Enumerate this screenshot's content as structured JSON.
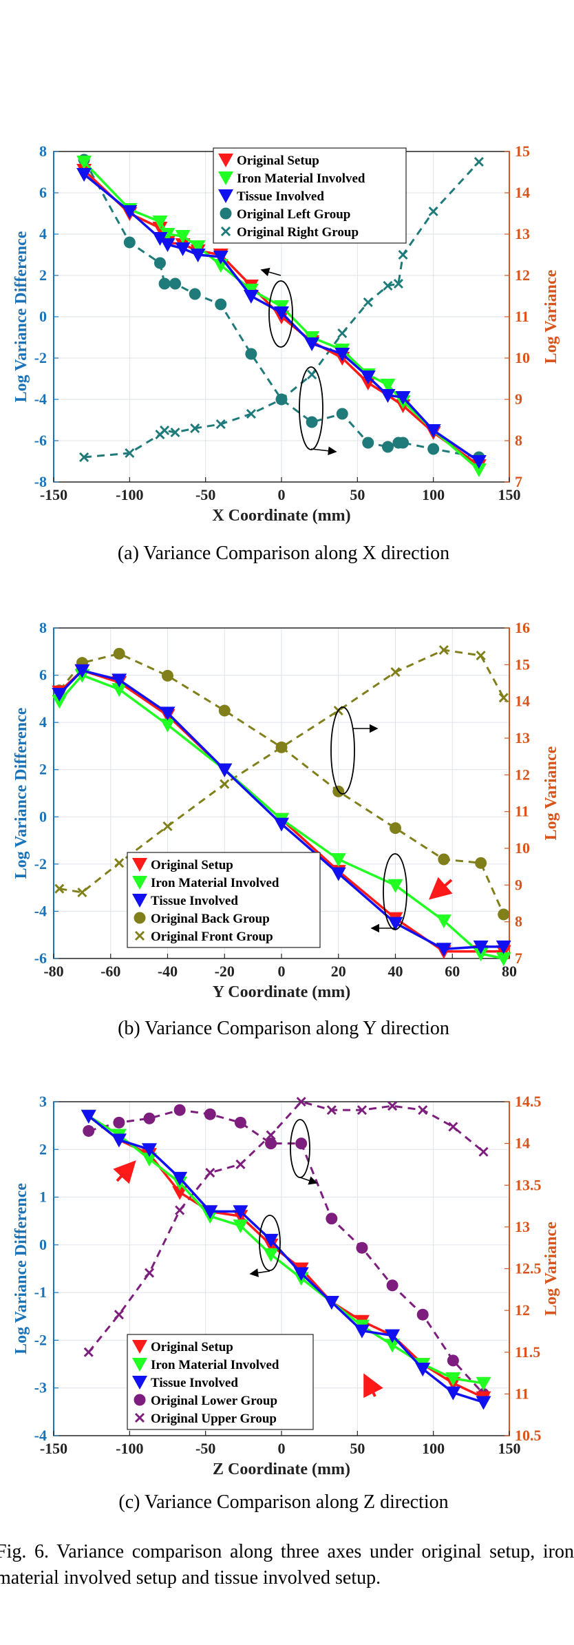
{
  "figure_caption": "Fig. 6.  Variance comparison along three axes under original setup, iron material involved setup and tissue involved setup.",
  "colors": {
    "left_axis": "#1a73b8",
    "right_axis": "#d9541a",
    "red": "#ff1a1a",
    "green": "#22ff22",
    "blue": "#1010f0",
    "teal": "#1f7a7a",
    "olive": "#807f1a",
    "purple": "#7d1d7d"
  },
  "chart_data": [
    {
      "type": "line",
      "caption": "(a)  Variance Comparison along X direction",
      "xlabel": "X Coordinate (mm)",
      "ylabel": "Log Variance Difference",
      "y2label": "Log Variance",
      "xlim": [
        -150,
        150
      ],
      "ylim": [
        -8,
        8
      ],
      "y2lim": [
        7,
        15
      ],
      "xticks": [
        "-150",
        "-100",
        "-50",
        "0",
        "50",
        "100",
        "150"
      ],
      "yticks": [
        "-8",
        "-6",
        "-4",
        "-2",
        "0",
        "2",
        "4",
        "6",
        "8"
      ],
      "y2ticks": [
        "7",
        "8",
        "9",
        "10",
        "11",
        "12",
        "13",
        "14",
        "15"
      ],
      "grid": true,
      "legend_position": "top-center",
      "series": [
        {
          "name": "Original Setup",
          "axis": "left",
          "color": "red",
          "marker": "triangle-down",
          "x": [
            -130,
            -100,
            -80,
            -75,
            -65,
            -55,
            -40,
            -20,
            0,
            20,
            40,
            57,
            70,
            80,
            100,
            130
          ],
          "y": [
            7.1,
            5.0,
            4.3,
            3.6,
            3.5,
            3.2,
            3.0,
            1.5,
            0.0,
            -1.2,
            -2.0,
            -3.2,
            -3.8,
            -4.3,
            -5.6,
            -7.2
          ]
        },
        {
          "name": "Iron Material Involved",
          "axis": "left",
          "color": "green",
          "marker": "triangle-down",
          "x": [
            -130,
            -100,
            -80,
            -75,
            -65,
            -55,
            -40,
            -20,
            0,
            20,
            40,
            57,
            70,
            80,
            100,
            130
          ],
          "y": [
            7.5,
            5.2,
            4.6,
            4.0,
            3.9,
            3.4,
            2.5,
            1.3,
            0.5,
            -1.0,
            -1.6,
            -2.8,
            -3.3,
            -4.1,
            -5.5,
            -7.4
          ]
        },
        {
          "name": "Tissue Involved",
          "axis": "left",
          "color": "blue",
          "marker": "triangle-down",
          "x": [
            -130,
            -100,
            -80,
            -75,
            -65,
            -55,
            -40,
            -20,
            0,
            20,
            40,
            57,
            70,
            80,
            100,
            130
          ],
          "y": [
            6.9,
            5.1,
            3.8,
            3.5,
            3.3,
            3.0,
            2.9,
            1.0,
            0.2,
            -1.3,
            -1.8,
            -2.9,
            -3.8,
            -3.9,
            -5.5,
            -7.0
          ]
        },
        {
          "name": "Original Left Group",
          "axis": "right",
          "color": "teal",
          "marker": "circle",
          "dashed": true,
          "x": [
            -130,
            -100,
            -80,
            -77,
            -70,
            -57,
            -40,
            -20,
            0,
            20,
            40,
            57,
            70,
            77,
            80,
            100,
            130
          ],
          "y": [
            14.8,
            12.8,
            12.3,
            11.8,
            11.8,
            11.55,
            11.3,
            10.1,
            9.0,
            8.45,
            8.65,
            7.95,
            7.85,
            7.95,
            7.95,
            7.8,
            7.6
          ]
        },
        {
          "name": "Original Right Group",
          "axis": "right",
          "color": "teal",
          "marker": "x",
          "dashed": true,
          "x": [
            -130,
            -100,
            -80,
            -77,
            -70,
            -57,
            -40,
            -20,
            0,
            20,
            40,
            57,
            70,
            77,
            80,
            100,
            130
          ],
          "y": [
            7.6,
            7.7,
            8.15,
            8.25,
            8.2,
            8.3,
            8.4,
            8.65,
            9.0,
            9.6,
            10.6,
            11.35,
            11.75,
            11.8,
            12.5,
            13.55,
            14.75
          ]
        }
      ]
    },
    {
      "type": "line",
      "caption": "(b)  Variance Comparison along Y direction",
      "xlabel": "Y Coordinate (mm)",
      "ylabel": "Log Variance Difference",
      "y2label": "Log Variance",
      "xlim": [
        -80,
        80
      ],
      "ylim": [
        -6,
        8
      ],
      "y2lim": [
        7,
        16
      ],
      "xticks": [
        "-80",
        "-60",
        "-40",
        "-20",
        "0",
        "20",
        "40",
        "60",
        "80"
      ],
      "yticks": [
        "-6",
        "-4",
        "-2",
        "0",
        "2",
        "4",
        "6",
        "8"
      ],
      "y2ticks": [
        "7",
        "8",
        "9",
        "10",
        "11",
        "12",
        "13",
        "14",
        "15",
        "16"
      ],
      "grid": true,
      "legend_position": "bottom-left",
      "series": [
        {
          "name": "Original Setup",
          "axis": "left",
          "color": "red",
          "marker": "triangle-down",
          "x": [
            -78,
            -70,
            -57,
            -40,
            -20,
            0,
            20,
            40,
            57,
            70,
            78
          ],
          "y": [
            5.3,
            6.2,
            5.7,
            4.3,
            2.0,
            -0.1,
            -2.3,
            -4.3,
            -5.7,
            -5.7,
            -5.7
          ]
        },
        {
          "name": "Iron Material Involved",
          "axis": "left",
          "color": "green",
          "marker": "triangle-down",
          "x": [
            -78,
            -70,
            -57,
            -40,
            -20,
            0,
            20,
            40,
            57,
            70,
            78
          ],
          "y": [
            4.9,
            6.0,
            5.4,
            3.9,
            2.0,
            -0.1,
            -1.8,
            -2.9,
            -4.4,
            -5.8,
            -6.0
          ]
        },
        {
          "name": "Tissue Involved",
          "axis": "left",
          "color": "blue",
          "marker": "triangle-down",
          "x": [
            -78,
            -70,
            -57,
            -40,
            -20,
            0,
            20,
            40,
            57,
            70,
            78
          ],
          "y": [
            5.2,
            6.2,
            5.8,
            4.4,
            2.0,
            -0.3,
            -2.4,
            -4.5,
            -5.6,
            -5.5,
            -5.5
          ]
        },
        {
          "name": "Original Back Group",
          "axis": "right",
          "color": "olive",
          "marker": "circle",
          "dashed": true,
          "x": [
            -78,
            -70,
            -57,
            -40,
            -20,
            0,
            20,
            40,
            57,
            70,
            78
          ],
          "y": [
            14.3,
            15.05,
            15.3,
            14.7,
            13.75,
            12.75,
            11.55,
            10.55,
            9.7,
            9.6,
            8.2
          ]
        },
        {
          "name": "Original Front Group",
          "axis": "right",
          "color": "olive",
          "marker": "x",
          "dashed": true,
          "x": [
            -78,
            -70,
            -57,
            -40,
            -20,
            0,
            20,
            40,
            57,
            70,
            78
          ],
          "y": [
            8.9,
            8.8,
            9.6,
            10.6,
            11.75,
            12.75,
            13.75,
            14.8,
            15.4,
            15.25,
            14.1
          ]
        }
      ]
    },
    {
      "type": "line",
      "caption": "(c)  Variance Comparison along Z direction",
      "xlabel": "Z Coordinate (mm)",
      "ylabel": "Log Variance Difference",
      "y2label": "Log Variance",
      "xlim": [
        -150,
        150
      ],
      "ylim": [
        -4,
        3
      ],
      "y2lim": [
        10.5,
        14.5
      ],
      "xticks": [
        "-150",
        "-100",
        "-50",
        "0",
        "50",
        "100",
        "150"
      ],
      "yticks": [
        "-4",
        "-3",
        "-2",
        "-1",
        "0",
        "1",
        "2",
        "3"
      ],
      "y2ticks": [
        "10.5",
        "11",
        "11.5",
        "12",
        "12.5",
        "13",
        "13.5",
        "14",
        "14.5"
      ],
      "grid": true,
      "legend_position": "bottom-left",
      "series": [
        {
          "name": "Original Setup",
          "axis": "left",
          "color": "red",
          "marker": "triangle-down",
          "x": [
            -127,
            -107,
            -87,
            -67,
            -47,
            -27,
            -7,
            13,
            33,
            53,
            73,
            93,
            113,
            133
          ],
          "y": [
            2.7,
            2.2,
            1.9,
            1.1,
            0.7,
            0.6,
            0.0,
            -0.5,
            -1.2,
            -1.6,
            -1.9,
            -2.5,
            -2.9,
            -3.2
          ]
        },
        {
          "name": "Iron Material Involved",
          "axis": "left",
          "color": "green",
          "marker": "triangle-down",
          "x": [
            -127,
            -107,
            -87,
            -67,
            -47,
            -27,
            -7,
            13,
            33,
            53,
            73,
            93,
            113,
            133
          ],
          "y": [
            2.7,
            2.3,
            1.8,
            1.3,
            0.6,
            0.4,
            -0.2,
            -0.7,
            -1.2,
            -1.7,
            -2.1,
            -2.5,
            -2.8,
            -2.9
          ]
        },
        {
          "name": "Tissue Involved",
          "axis": "left",
          "color": "blue",
          "marker": "triangle-down",
          "x": [
            -127,
            -107,
            -87,
            -67,
            -47,
            -27,
            -7,
            13,
            33,
            53,
            73,
            93,
            113,
            133
          ],
          "y": [
            2.7,
            2.2,
            2.0,
            1.4,
            0.7,
            0.7,
            0.1,
            -0.6,
            -1.2,
            -1.8,
            -1.9,
            -2.6,
            -3.1,
            -3.3
          ]
        },
        {
          "name": "Original Lower Group",
          "axis": "right",
          "color": "purple",
          "marker": "circle",
          "dashed": true,
          "x": [
            -127,
            -107,
            -87,
            -67,
            -47,
            -27,
            -7,
            13,
            33,
            53,
            73,
            93,
            113,
            133
          ],
          "y": [
            14.15,
            14.25,
            14.3,
            14.4,
            14.35,
            14.25,
            14.0,
            14.0,
            13.1,
            12.75,
            12.3,
            11.95,
            11.4,
            11.0
          ]
        },
        {
          "name": "Original Upper Group",
          "axis": "right",
          "color": "purple",
          "marker": "x",
          "dashed": true,
          "x": [
            -127,
            -107,
            -87,
            -67,
            -47,
            -27,
            -7,
            13,
            33,
            53,
            73,
            93,
            113,
            133
          ],
          "y": [
            11.5,
            11.95,
            12.45,
            13.2,
            13.65,
            13.75,
            14.1,
            14.5,
            14.4,
            14.4,
            14.45,
            14.4,
            14.2,
            13.9
          ]
        }
      ]
    }
  ]
}
